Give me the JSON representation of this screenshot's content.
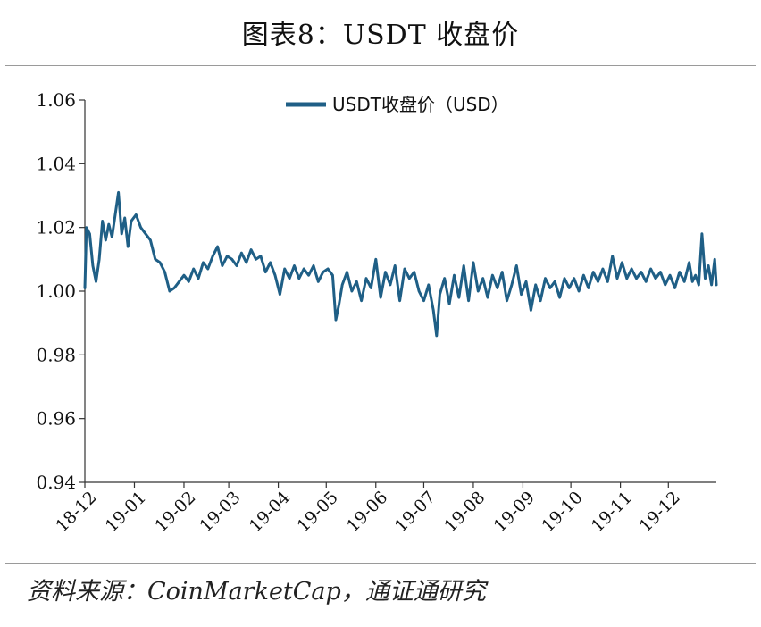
{
  "header": {
    "title": "图表8：USDT 收盘价"
  },
  "footer": {
    "source": "资料来源：CoinMarketCap，通证通研究"
  },
  "chart_data": {
    "type": "line",
    "title": "图表8：USDT 收盘价",
    "xlabel": "",
    "ylabel": "",
    "ylim": [
      0.94,
      1.06
    ],
    "yticks": [
      "0.94",
      "0.96",
      "0.98",
      "1.00",
      "1.02",
      "1.04",
      "1.06"
    ],
    "xticks": [
      "18-12",
      "19-01",
      "19-02",
      "19-03",
      "19-04",
      "19-05",
      "19-06",
      "19-07",
      "19-08",
      "19-09",
      "19-10",
      "19-11",
      "19-12"
    ],
    "legend_position": "top-center",
    "grid": false,
    "color": "#1f5f86",
    "series": [
      {
        "name": "USDT收盘价（USD）",
        "points": [
          [
            "2018-12-01",
            1.001
          ],
          [
            "2018-12-02",
            1.02
          ],
          [
            "2018-12-04",
            1.018
          ],
          [
            "2018-12-06",
            1.008
          ],
          [
            "2018-12-08",
            1.003
          ],
          [
            "2018-12-10",
            1.01
          ],
          [
            "2018-12-12",
            1.022
          ],
          [
            "2018-12-14",
            1.016
          ],
          [
            "2018-12-16",
            1.021
          ],
          [
            "2018-12-18",
            1.017
          ],
          [
            "2018-12-20",
            1.024
          ],
          [
            "2018-12-22",
            1.031
          ],
          [
            "2018-12-24",
            1.018
          ],
          [
            "2018-12-26",
            1.023
          ],
          [
            "2018-12-28",
            1.014
          ],
          [
            "2018-12-30",
            1.022
          ],
          [
            "2019-01-02",
            1.024
          ],
          [
            "2019-01-05",
            1.02
          ],
          [
            "2019-01-08",
            1.018
          ],
          [
            "2019-01-11",
            1.016
          ],
          [
            "2019-01-14",
            1.01
          ],
          [
            "2019-01-17",
            1.009
          ],
          [
            "2019-01-20",
            1.006
          ],
          [
            "2019-01-23",
            1.0
          ],
          [
            "2019-01-26",
            1.001
          ],
          [
            "2019-01-29",
            1.003
          ],
          [
            "2019-02-01",
            1.005
          ],
          [
            "2019-02-04",
            1.003
          ],
          [
            "2019-02-07",
            1.007
          ],
          [
            "2019-02-10",
            1.004
          ],
          [
            "2019-02-13",
            1.009
          ],
          [
            "2019-02-16",
            1.007
          ],
          [
            "2019-02-19",
            1.011
          ],
          [
            "2019-02-22",
            1.014
          ],
          [
            "2019-02-25",
            1.008
          ],
          [
            "2019-02-28",
            1.011
          ],
          [
            "2019-03-03",
            1.01
          ],
          [
            "2019-03-06",
            1.008
          ],
          [
            "2019-03-09",
            1.012
          ],
          [
            "2019-03-12",
            1.009
          ],
          [
            "2019-03-15",
            1.013
          ],
          [
            "2019-03-18",
            1.01
          ],
          [
            "2019-03-21",
            1.011
          ],
          [
            "2019-03-24",
            1.006
          ],
          [
            "2019-03-27",
            1.009
          ],
          [
            "2019-03-30",
            1.005
          ],
          [
            "2019-04-02",
            0.999
          ],
          [
            "2019-04-05",
            1.007
          ],
          [
            "2019-04-08",
            1.004
          ],
          [
            "2019-04-11",
            1.008
          ],
          [
            "2019-04-14",
            1.004
          ],
          [
            "2019-04-17",
            1.007
          ],
          [
            "2019-04-20",
            1.005
          ],
          [
            "2019-04-23",
            1.008
          ],
          [
            "2019-04-26",
            1.003
          ],
          [
            "2019-04-29",
            1.006
          ],
          [
            "2019-05-02",
            1.007
          ],
          [
            "2019-05-05",
            1.005
          ],
          [
            "2019-05-07",
            0.991
          ],
          [
            "2019-05-09",
            0.996
          ],
          [
            "2019-05-11",
            1.002
          ],
          [
            "2019-05-14",
            1.006
          ],
          [
            "2019-05-17",
            1.0
          ],
          [
            "2019-05-20",
            1.003
          ],
          [
            "2019-05-23",
            0.997
          ],
          [
            "2019-05-26",
            1.004
          ],
          [
            "2019-05-29",
            1.001
          ],
          [
            "2019-06-01",
            1.01
          ],
          [
            "2019-06-04",
            0.998
          ],
          [
            "2019-06-07",
            1.006
          ],
          [
            "2019-06-10",
            1.002
          ],
          [
            "2019-06-13",
            1.008
          ],
          [
            "2019-06-16",
            0.997
          ],
          [
            "2019-06-19",
            1.007
          ],
          [
            "2019-06-22",
            1.004
          ],
          [
            "2019-06-25",
            1.006
          ],
          [
            "2019-06-28",
            1.0
          ],
          [
            "2019-07-01",
            0.997
          ],
          [
            "2019-07-04",
            1.002
          ],
          [
            "2019-07-07",
            0.994
          ],
          [
            "2019-07-09",
            0.986
          ],
          [
            "2019-07-11",
            0.999
          ],
          [
            "2019-07-14",
            1.004
          ],
          [
            "2019-07-17",
            0.996
          ],
          [
            "2019-07-20",
            1.005
          ],
          [
            "2019-07-23",
            0.998
          ],
          [
            "2019-07-26",
            1.008
          ],
          [
            "2019-07-29",
            0.997
          ],
          [
            "2019-08-01",
            1.009
          ],
          [
            "2019-08-04",
            1.0
          ],
          [
            "2019-08-07",
            1.004
          ],
          [
            "2019-08-10",
            0.998
          ],
          [
            "2019-08-13",
            1.005
          ],
          [
            "2019-08-16",
            1.001
          ],
          [
            "2019-08-19",
            1.006
          ],
          [
            "2019-08-22",
            0.997
          ],
          [
            "2019-08-25",
            1.002
          ],
          [
            "2019-08-28",
            1.008
          ],
          [
            "2019-08-31",
            0.999
          ],
          [
            "2019-09-03",
            1.003
          ],
          [
            "2019-09-06",
            0.994
          ],
          [
            "2019-09-09",
            1.002
          ],
          [
            "2019-09-12",
            0.997
          ],
          [
            "2019-09-15",
            1.004
          ],
          [
            "2019-09-18",
            1.001
          ],
          [
            "2019-09-21",
            1.003
          ],
          [
            "2019-09-24",
            0.998
          ],
          [
            "2019-09-27",
            1.004
          ],
          [
            "2019-09-30",
            1.001
          ],
          [
            "2019-10-03",
            1.004
          ],
          [
            "2019-10-06",
            1.0
          ],
          [
            "2019-10-09",
            1.005
          ],
          [
            "2019-10-12",
            1.001
          ],
          [
            "2019-10-15",
            1.006
          ],
          [
            "2019-10-18",
            1.003
          ],
          [
            "2019-10-21",
            1.007
          ],
          [
            "2019-10-24",
            1.003
          ],
          [
            "2019-10-27",
            1.011
          ],
          [
            "2019-10-30",
            1.004
          ],
          [
            "2019-11-02",
            1.009
          ],
          [
            "2019-11-05",
            1.004
          ],
          [
            "2019-11-08",
            1.007
          ],
          [
            "2019-11-11",
            1.004
          ],
          [
            "2019-11-14",
            1.006
          ],
          [
            "2019-11-17",
            1.003
          ],
          [
            "2019-11-20",
            1.007
          ],
          [
            "2019-11-23",
            1.004
          ],
          [
            "2019-11-26",
            1.006
          ],
          [
            "2019-11-29",
            1.002
          ],
          [
            "2019-12-02",
            1.005
          ],
          [
            "2019-12-05",
            1.001
          ],
          [
            "2019-12-08",
            1.006
          ],
          [
            "2019-12-11",
            1.003
          ],
          [
            "2019-12-14",
            1.009
          ],
          [
            "2019-12-16",
            1.003
          ],
          [
            "2019-12-18",
            1.005
          ],
          [
            "2019-12-20",
            1.002
          ],
          [
            "2019-12-22",
            1.018
          ],
          [
            "2019-12-24",
            1.004
          ],
          [
            "2019-12-26",
            1.008
          ],
          [
            "2019-12-28",
            1.002
          ],
          [
            "2019-12-30",
            1.01
          ],
          [
            "2019-12-31",
            1.002
          ]
        ]
      }
    ]
  }
}
